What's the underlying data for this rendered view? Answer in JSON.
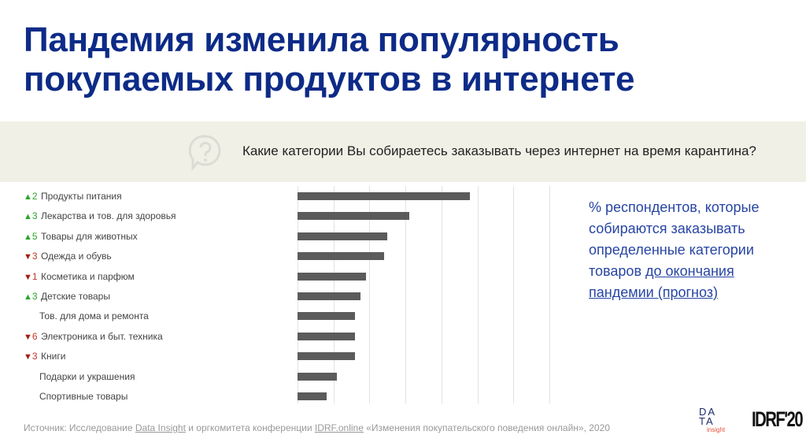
{
  "title_line1": "Пандемия изменила популярность",
  "title_line2": "покупаемых продуктов в интернете",
  "question": "Какие категории Вы собираетесь заказывать через интернет на время карантина?",
  "note": {
    "text1": "% респондентов, которые собираются заказывать определенные категории товаров ",
    "underlined": "до окончания пандемии (прогноз)"
  },
  "source": {
    "prefix": "Источник: Исследование ",
    "link1": "Data Insight",
    "mid": " и оргкомитета конференции ",
    "link2": "IDRF.online",
    "suffix": " «Изменения покупательского поведения онлайн», 2020"
  },
  "logos": {
    "data_insight": "DATA insight",
    "idrf": "IDRF'20"
  },
  "colors": {
    "title": "#0d2b87",
    "bar": "#5b5b5b",
    "up": "#2aa52a",
    "down": "#c0392b",
    "note": "#2745a3",
    "band": "#f1f0e6"
  },
  "chart_data": {
    "type": "bar",
    "orientation": "horizontal",
    "categories": [
      "Продукты питания",
      "Лекарства и тов. для здоровья",
      "Товары для животных",
      "Одежда и обувь",
      "Косметика и парфюм",
      "Детские товары",
      "Тов. для дома и ремонта",
      "Электроника и быт. техника",
      "Книги",
      "Подарки и украшения",
      "Спортивные товары"
    ],
    "values": [
      48,
      31,
      25,
      24,
      19,
      17.5,
      16,
      16,
      16,
      11,
      8
    ],
    "rank_change": [
      {
        "dir": "up",
        "n": "2"
      },
      {
        "dir": "up",
        "n": "3"
      },
      {
        "dir": "up",
        "n": "5"
      },
      {
        "dir": "down",
        "n": "3"
      },
      {
        "dir": "down",
        "n": "1"
      },
      {
        "dir": "up",
        "n": "3"
      },
      null,
      {
        "dir": "down",
        "n": "6"
      },
      {
        "dir": "down",
        "n": "3"
      },
      null,
      null
    ],
    "xlim": [
      0,
      70
    ],
    "grid_step": 10,
    "grid": true,
    "unit": "%"
  }
}
